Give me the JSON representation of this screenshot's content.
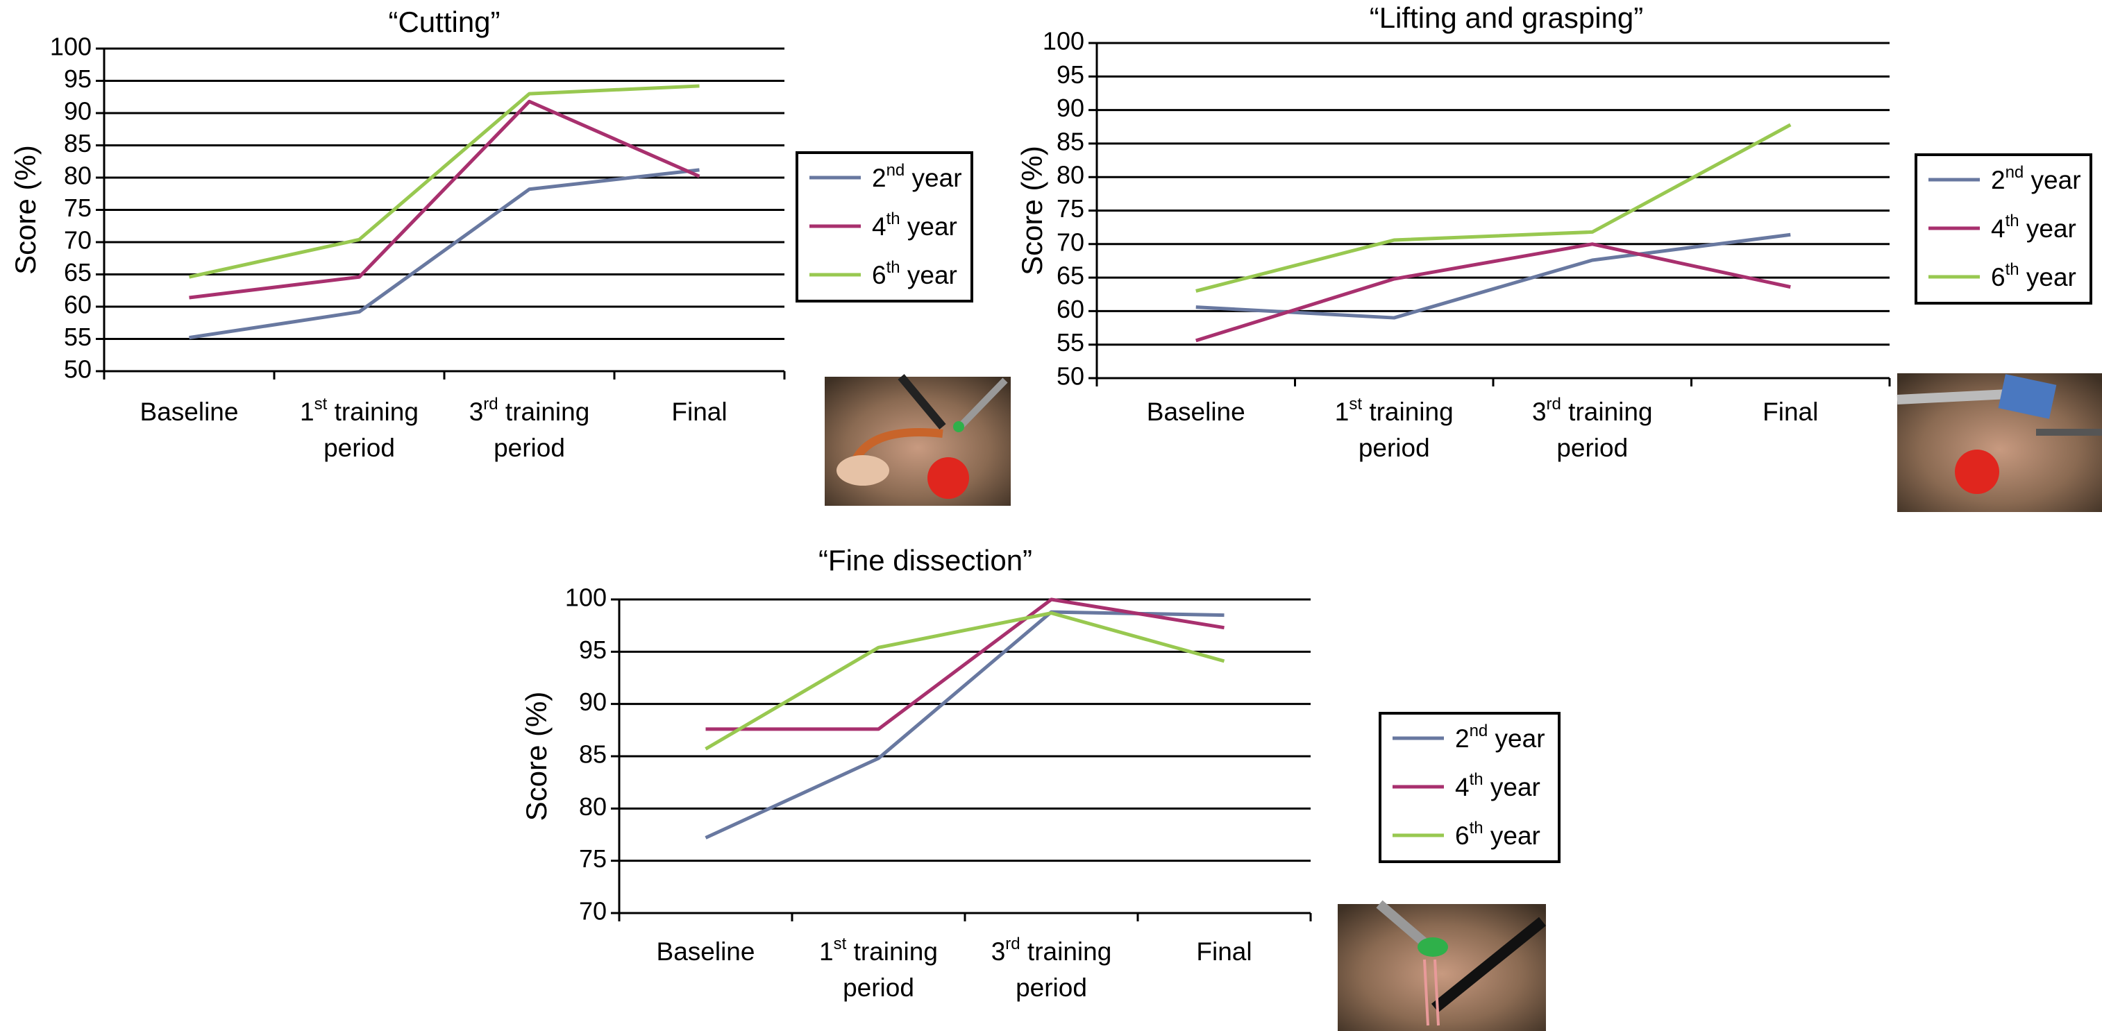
{
  "chart_data": [
    {
      "type": "line",
      "title": "“Cutting”",
      "ylabel": "Score (%)",
      "xlabel": "",
      "ylim": [
        50,
        100
      ],
      "yticks": [
        50,
        55,
        60,
        65,
        70,
        75,
        80,
        85,
        90,
        95,
        100
      ],
      "categories": [
        {
          "main": "Baseline",
          "sup": "",
          "rest": "",
          "line2": ""
        },
        {
          "main": "1",
          "sup": "st",
          "rest": " training",
          "line2": "period"
        },
        {
          "main": "3",
          "sup": "rd",
          "rest": " training",
          "line2": "period"
        },
        {
          "main": "Final",
          "sup": "",
          "rest": "",
          "line2": ""
        }
      ],
      "series": [
        {
          "name": "2nd year",
          "name_main": "2",
          "name_sup": "nd",
          "name_rest": " year",
          "color": "#6878a0",
          "values": [
            55.2,
            59.2,
            78.2,
            81.2
          ]
        },
        {
          "name": "4th year",
          "name_main": "4",
          "name_sup": "th",
          "name_rest": " year",
          "color": "#a8306e",
          "values": [
            61.4,
            64.6,
            91.8,
            80.2
          ]
        },
        {
          "name": "6th year",
          "name_main": "6",
          "name_sup": "th",
          "name_rest": " year",
          "color": "#98c850",
          "values": [
            64.6,
            70.4,
            93.0,
            94.2
          ]
        }
      ],
      "grid": true,
      "legend": "right",
      "image": "laparoscopic-cutting-thumbnail"
    },
    {
      "type": "line",
      "title": "“Lifting and grasping”",
      "ylabel": "Score (%)",
      "xlabel": "",
      "ylim": [
        50,
        100
      ],
      "yticks": [
        50,
        55,
        60,
        65,
        70,
        75,
        80,
        85,
        90,
        95,
        100
      ],
      "categories": [
        {
          "main": "Baseline",
          "sup": "",
          "rest": "",
          "line2": ""
        },
        {
          "main": "1",
          "sup": "st",
          "rest": " training",
          "line2": "period"
        },
        {
          "main": "3",
          "sup": "rd",
          "rest": " training",
          "line2": "period"
        },
        {
          "main": "Final",
          "sup": "",
          "rest": "",
          "line2": ""
        }
      ],
      "series": [
        {
          "name": "2nd year",
          "name_main": "2",
          "name_sup": "nd",
          "name_rest": " year",
          "color": "#6878a0",
          "values": [
            60.6,
            59.0,
            67.6,
            71.4
          ]
        },
        {
          "name": "4th year",
          "name_main": "4",
          "name_sup": "th",
          "name_rest": " year",
          "color": "#a8306e",
          "values": [
            55.6,
            64.8,
            70.0,
            63.6
          ]
        },
        {
          "name": "6th year",
          "name_main": "6",
          "name_sup": "th",
          "name_rest": " year",
          "color": "#98c850",
          "values": [
            63.0,
            70.6,
            71.8,
            87.8
          ]
        }
      ],
      "grid": true,
      "legend": "right",
      "image": "laparoscopic-lifting-thumbnail"
    },
    {
      "type": "line",
      "title": "“Fine dissection”",
      "ylabel": "Score (%)",
      "xlabel": "",
      "ylim": [
        70,
        100
      ],
      "yticks": [
        70,
        75,
        80,
        85,
        90,
        95,
        100
      ],
      "categories": [
        {
          "main": "Baseline",
          "sup": "",
          "rest": "",
          "line2": ""
        },
        {
          "main": "1",
          "sup": "st",
          "rest": " training",
          "line2": "period"
        },
        {
          "main": "3",
          "sup": "rd",
          "rest": " training",
          "line2": "period"
        },
        {
          "main": "Final",
          "sup": "",
          "rest": "",
          "line2": ""
        }
      ],
      "series": [
        {
          "name": "2nd year",
          "name_main": "2",
          "name_sup": "nd",
          "name_rest": " year",
          "color": "#6878a0",
          "values": [
            77.2,
            84.8,
            98.8,
            98.5
          ]
        },
        {
          "name": "4th year",
          "name_main": "4",
          "name_sup": "th",
          "name_rest": " year",
          "color": "#a8306e",
          "values": [
            87.6,
            87.6,
            100.0,
            97.3
          ]
        },
        {
          "name": "6th year",
          "name_main": "6",
          "name_sup": "th",
          "name_rest": " year",
          "color": "#98c850",
          "values": [
            85.7,
            95.4,
            98.7,
            94.1
          ]
        }
      ],
      "grid": true,
      "legend": "right",
      "image": "laparoscopic-dissection-thumbnail"
    }
  ]
}
